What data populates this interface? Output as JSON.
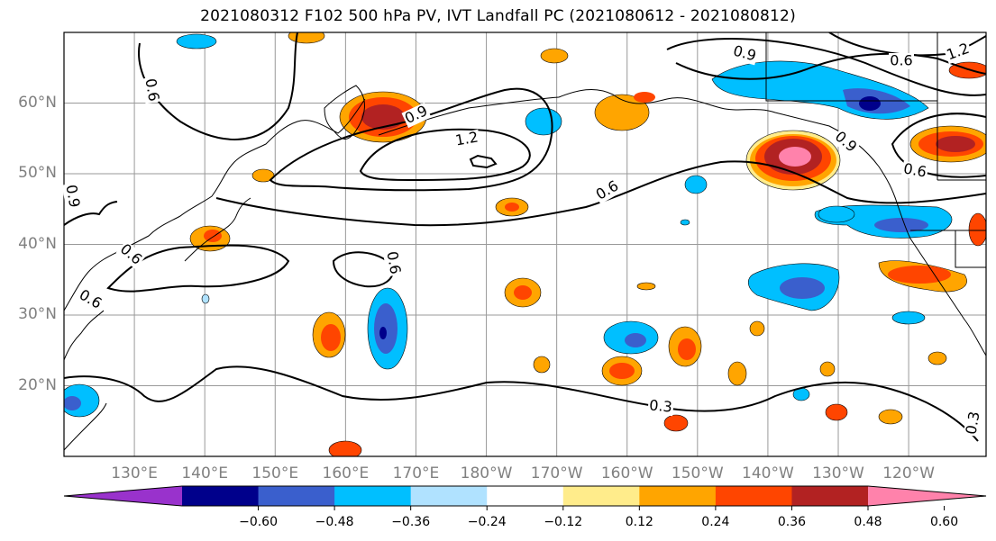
{
  "title": "2021080312 F102 500 hPa PV, IVT Landfall PC (2021080612 - 2021080812)",
  "map": {
    "projection": "plate carree",
    "lon_range": [
      120,
      251
    ],
    "lat_range": [
      10,
      70
    ],
    "lat_ticks": [
      {
        "value": 60,
        "label": "60°N"
      },
      {
        "value": 50,
        "label": "50°N"
      },
      {
        "value": 40,
        "label": "40°N"
      },
      {
        "value": 30,
        "label": "30°N"
      },
      {
        "value": 20,
        "label": "20°N"
      }
    ],
    "lon_ticks": [
      {
        "value": 130,
        "label": "130°E"
      },
      {
        "value": 140,
        "label": "140°E"
      },
      {
        "value": 150,
        "label": "150°E"
      },
      {
        "value": 160,
        "label": "160°E"
      },
      {
        "value": 170,
        "label": "170°E"
      },
      {
        "value": 180,
        "label": "180°W"
      },
      {
        "value": 190,
        "label": "170°W"
      },
      {
        "value": 200,
        "label": "160°W"
      },
      {
        "value": 210,
        "label": "150°W"
      },
      {
        "value": 220,
        "label": "140°W"
      },
      {
        "value": 230,
        "label": "130°W"
      },
      {
        "value": 240,
        "label": "120°W"
      }
    ],
    "gridlines": true,
    "contour_labels": [
      "0.6",
      "0.9",
      "1.2",
      "0.6",
      "0.9",
      "0.6",
      "0.3",
      "0.6",
      "0.9",
      "0.6",
      "0.6",
      "0.3",
      "1.2",
      "0.6",
      "0.9"
    ]
  },
  "colorbar": {
    "colors": [
      "#9932cc",
      "#00008b",
      "#3a5fcd",
      "#00bfff",
      "#b0e2ff",
      "#ffffff",
      "#ffec8b",
      "#ffa500",
      "#ff4500",
      "#b22222",
      "#ff82ab"
    ],
    "ticks": [
      "−0.60",
      "−0.48",
      "−0.36",
      "−0.24",
      "−0.12",
      "0.12",
      "0.24",
      "0.36",
      "0.48",
      "0.60"
    ]
  }
}
